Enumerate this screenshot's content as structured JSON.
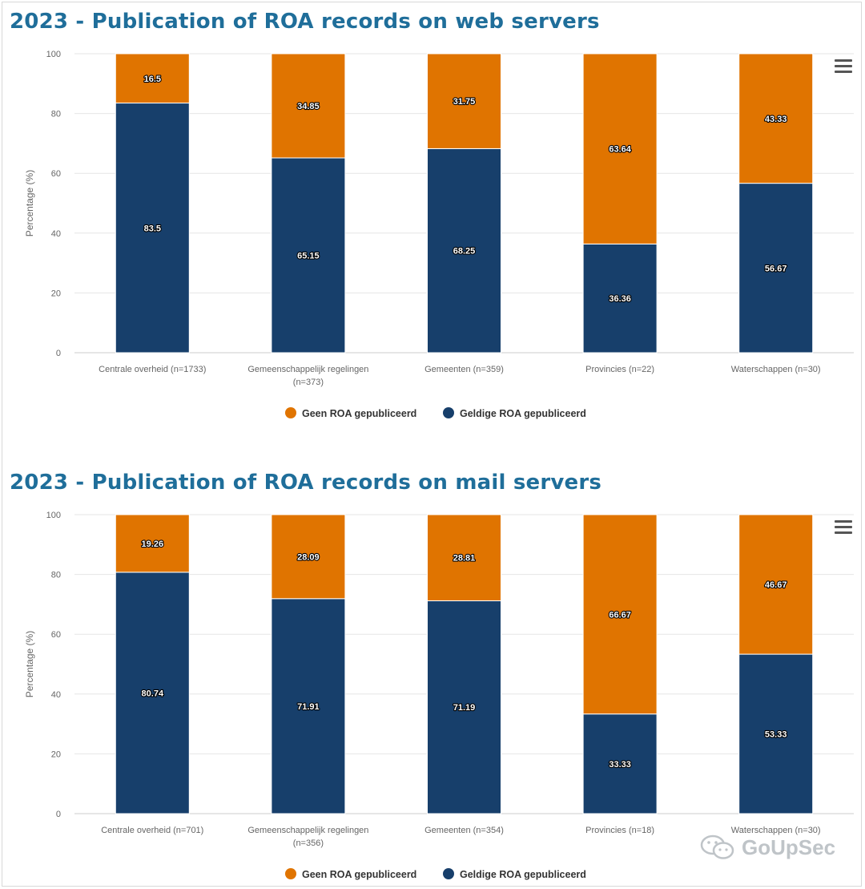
{
  "watermark": {
    "text": "GoUpSec",
    "icon": "wechat-bubbles-icon"
  },
  "colors": {
    "orange": "#e07400",
    "navy": "#173f6b",
    "title": "#1f6e9a"
  },
  "chart_data": [
    {
      "type": "bar",
      "stacked": true,
      "title": "2023 - Publication of ROA records on web servers",
      "ylabel": "Percentage (%)",
      "xlabel": "",
      "ylim": [
        0,
        100
      ],
      "yticks": [
        0,
        20,
        40,
        60,
        80,
        100
      ],
      "grid": true,
      "legend_position": "bottom",
      "categories": [
        [
          "Centrale overheid (n=1733)"
        ],
        [
          "Gemeenschappelijk regelingen",
          "(n=373)"
        ],
        [
          "Gemeenten (n=359)"
        ],
        [
          "Provincies (n=22)"
        ],
        [
          "Waterschappen (n=30)"
        ]
      ],
      "series": [
        {
          "name": "Geldige ROA gepubliceerd",
          "color": "#173f6b",
          "values": [
            83.5,
            65.15,
            68.25,
            36.36,
            56.67
          ]
        },
        {
          "name": "Geen ROA gepubliceerd",
          "color": "#e07400",
          "values": [
            16.5,
            34.85,
            31.75,
            63.64,
            43.33
          ]
        }
      ],
      "legend": [
        {
          "name": "Geen ROA gepubliceerd",
          "color": "#e07400"
        },
        {
          "name": "Geldige ROA gepubliceerd",
          "color": "#173f6b"
        }
      ]
    },
    {
      "type": "bar",
      "stacked": true,
      "title": "2023 - Publication of ROA records on mail servers",
      "ylabel": "Percentage (%)",
      "xlabel": "",
      "ylim": [
        0,
        100
      ],
      "yticks": [
        0,
        20,
        40,
        60,
        80,
        100
      ],
      "grid": true,
      "legend_position": "bottom",
      "categories": [
        [
          "Centrale overheid (n=701)"
        ],
        [
          "Gemeenschappelijk regelingen",
          "(n=356)"
        ],
        [
          "Gemeenten (n=354)"
        ],
        [
          "Provincies (n=18)"
        ],
        [
          "Waterschappen (n=30)"
        ]
      ],
      "series": [
        {
          "name": "Geldige ROA gepubliceerd",
          "color": "#173f6b",
          "values": [
            80.74,
            71.91,
            71.19,
            33.33,
            53.33
          ]
        },
        {
          "name": "Geen ROA gepubliceerd",
          "color": "#e07400",
          "values": [
            19.26,
            28.09,
            28.81,
            66.67,
            46.67
          ]
        }
      ],
      "legend": [
        {
          "name": "Geen ROA gepubliceerd",
          "color": "#e07400"
        },
        {
          "name": "Geldige ROA gepubliceerd",
          "color": "#173f6b"
        }
      ]
    }
  ]
}
